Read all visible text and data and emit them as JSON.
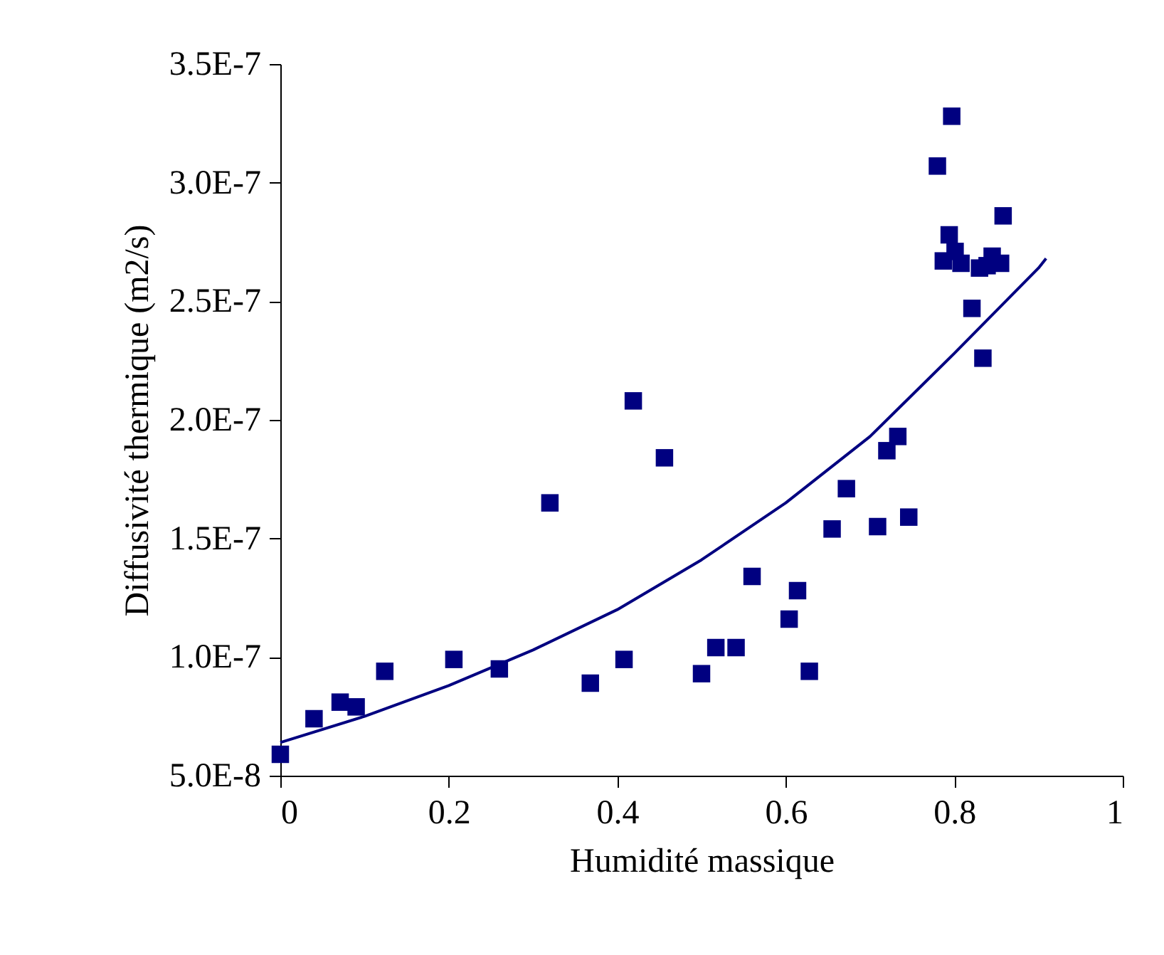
{
  "chart_data": {
    "type": "scatter",
    "xlabel": "Humidité massique",
    "ylabel": "Diffusivité thermique (m2/s)",
    "xlim": [
      0,
      1
    ],
    "xticks": [
      0,
      0.2,
      0.4,
      0.6,
      0.8,
      1
    ],
    "ylim": [
      5e-08,
      3.5e-07
    ],
    "yticks": [
      {
        "value": 5e-08,
        "label": "5.0E-8"
      },
      {
        "value": 1e-07,
        "label": "1.0E-7"
      },
      {
        "value": 1.5e-07,
        "label": "1.5E-7"
      },
      {
        "value": 2e-07,
        "label": "2.0E-7"
      },
      {
        "value": 2.5e-07,
        "label": "2.5E-7"
      },
      {
        "value": 3e-07,
        "label": "3.0E-7"
      },
      {
        "value": 3.5e-07,
        "label": "3.5E-7"
      }
    ],
    "grid": false,
    "series": [
      {
        "color": "#000080",
        "marker": "square",
        "x": [
          0,
          0.04,
          0.071,
          0.09,
          0.124,
          0.206,
          0.26,
          0.32,
          0.368,
          0.408,
          0.419,
          0.456,
          0.5,
          0.517,
          0.541,
          0.56,
          0.604,
          0.614,
          0.628,
          0.655,
          0.672,
          0.709,
          0.72,
          0.733,
          0.746,
          0.78,
          0.787,
          0.794,
          0.797,
          0.801,
          0.808,
          0.821,
          0.83,
          0.834,
          0.839,
          0.845,
          0.855,
          0.858
        ],
        "values": [
          5.9e-08,
          7.4e-08,
          8.1e-08,
          7.9e-08,
          9.4e-08,
          9.9e-08,
          9.5e-08,
          1.65e-07,
          8.9e-08,
          9.9e-08,
          2.08e-07,
          1.84e-07,
          9.3e-08,
          1.04e-07,
          1.04e-07,
          1.34e-07,
          1.16e-07,
          1.28e-07,
          9.4e-08,
          1.54e-07,
          1.71e-07,
          1.55e-07,
          1.87e-07,
          1.93e-07,
          1.59e-07,
          3.07e-07,
          2.67e-07,
          2.78e-07,
          3.28e-07,
          2.71e-07,
          2.66e-07,
          2.47e-07,
          2.64e-07,
          2.26e-07,
          2.65e-07,
          2.69e-07,
          2.66e-07,
          2.86e-07
        ]
      },
      {
        "type": "line",
        "color": "#000080",
        "marker": "none",
        "line_style": "solid",
        "x": [
          0,
          0.1,
          0.2,
          0.3,
          0.4,
          0.5,
          0.6,
          0.7,
          0.8,
          0.9,
          0.909
        ],
        "values": [
          6.4e-08,
          7.5e-08,
          8.8e-08,
          1.03e-07,
          1.2e-07,
          1.41e-07,
          1.65e-07,
          1.93e-07,
          2.28e-07,
          2.64e-07,
          2.68e-07
        ]
      }
    ]
  }
}
